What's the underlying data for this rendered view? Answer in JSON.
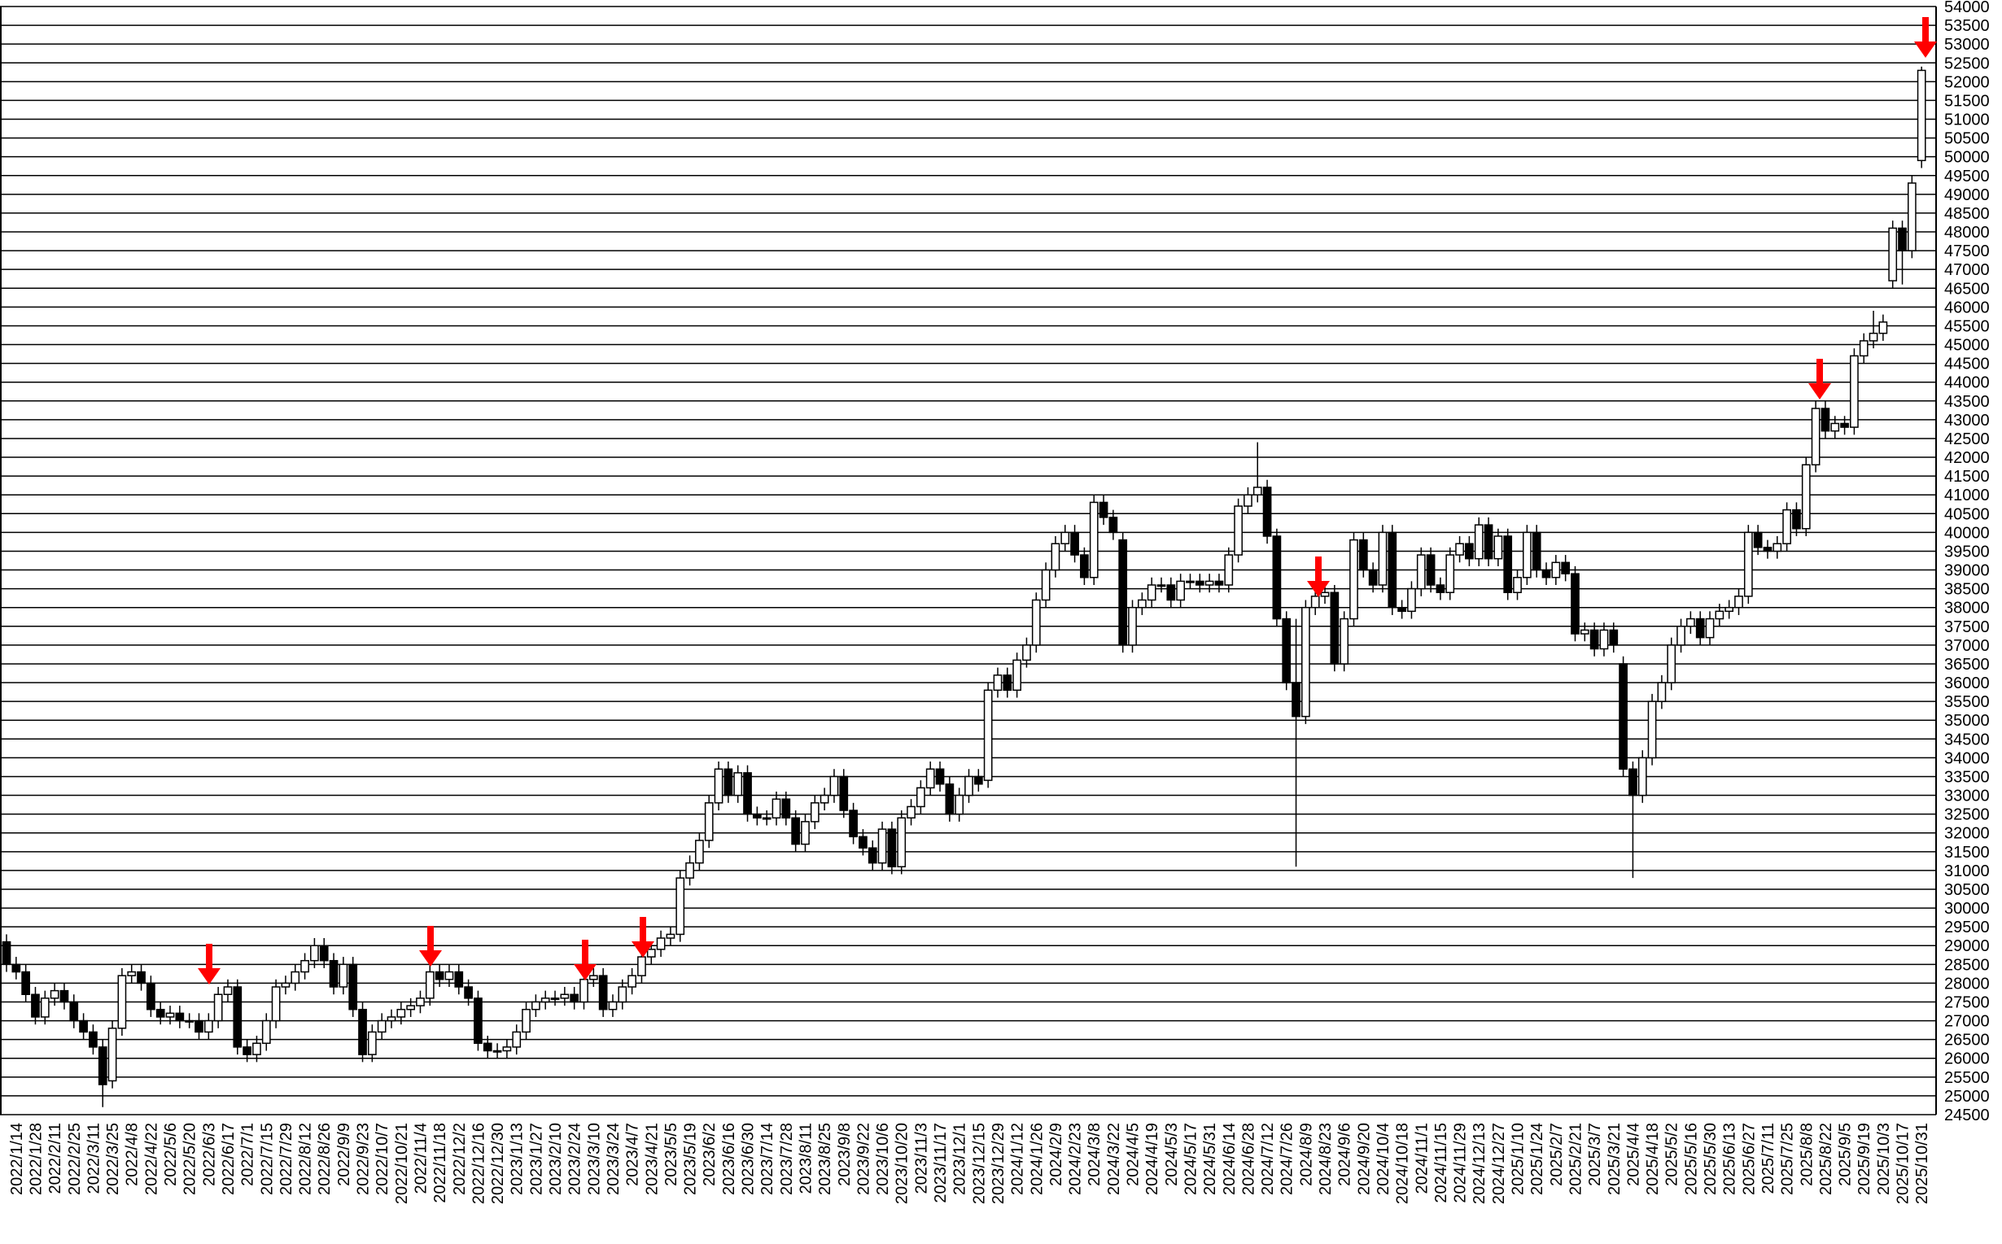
{
  "chart_data": {
    "type": "candlestick",
    "up_color": "#ffffff",
    "down_color": "#000000",
    "edge_color": "#000000",
    "grid": true,
    "ylim": [
      24500,
      54000
    ],
    "yticks": [
      24500,
      25000,
      25500,
      26000,
      26500,
      27000,
      27500,
      28000,
      28500,
      29000,
      29500,
      30000,
      30500,
      31000,
      31500,
      32000,
      32500,
      33000,
      33500,
      34000,
      34500,
      35000,
      35500,
      36000,
      36500,
      37000,
      37500,
      38000,
      38500,
      39000,
      39500,
      40000,
      40500,
      41000,
      41500,
      42000,
      42500,
      43000,
      43500,
      44000,
      44500,
      45000,
      45500,
      46000,
      46500,
      47000,
      47500,
      48000,
      48500,
      49000,
      49500,
      50000,
      50500,
      51000,
      51500,
      52000,
      52500,
      53000,
      53500,
      54000
    ],
    "categories": [
      null,
      "2022/1/14",
      null,
      "2022/1/28",
      null,
      "2022/2/11",
      null,
      "2022/2/25",
      null,
      "2022/3/11",
      null,
      "2022/3/25",
      null,
      "2022/4/8",
      null,
      "2022/4/22",
      null,
      "2022/5/6",
      null,
      "2022/5/20",
      null,
      "2022/6/3",
      null,
      "2022/6/17",
      null,
      "2022/7/1",
      null,
      "2022/7/15",
      null,
      "2022/7/29",
      null,
      "2022/8/12",
      null,
      "2022/8/26",
      null,
      "2022/9/9",
      null,
      "2022/9/23",
      null,
      "2022/10/7",
      null,
      "2022/10/21",
      null,
      "2022/11/4",
      null,
      "2022/11/18",
      null,
      "2022/12/2",
      null,
      "2022/12/16",
      null,
      "2022/12/30",
      null,
      "2023/1/13",
      null,
      "2023/1/27",
      null,
      "2023/2/10",
      null,
      "2023/2/24",
      null,
      "2023/3/10",
      null,
      "2023/3/24",
      null,
      "2023/4/7",
      null,
      "2023/4/21",
      null,
      "2023/5/5",
      null,
      "2023/5/19",
      null,
      "2023/6/2",
      null,
      "2023/6/16",
      null,
      "2023/6/30",
      null,
      "2023/7/14",
      null,
      "2023/7/28",
      null,
      "2023/8/11",
      null,
      "2023/8/25",
      null,
      "2023/9/8",
      null,
      "2023/9/22",
      null,
      "2023/10/6",
      null,
      "2023/10/20",
      null,
      "2023/11/3",
      null,
      "2023/11/17",
      null,
      "2023/12/1",
      null,
      "2023/12/15",
      null,
      "2023/12/29",
      null,
      "2024/1/12",
      null,
      "2024/1/26",
      null,
      "2024/2/9",
      null,
      "2024/2/23",
      null,
      "2024/3/8",
      null,
      "2024/3/22",
      null,
      "2024/4/5",
      null,
      "2024/4/19",
      null,
      "2024/5/3",
      null,
      "2024/5/17",
      null,
      "2024/5/31",
      null,
      "2024/6/14",
      null,
      "2024/6/28",
      null,
      "2024/7/12",
      null,
      "2024/7/26",
      null,
      "2024/8/9",
      null,
      "2024/8/23",
      null,
      "2024/9/6",
      null,
      "2024/9/20",
      null,
      "2024/10/4",
      null,
      "2024/10/18",
      null,
      "2024/11/1",
      null,
      "2024/11/15",
      null,
      "2024/11/29",
      null,
      "2024/12/13",
      null,
      "2024/12/27",
      null,
      "2025/1/10",
      null,
      "2025/1/24",
      null,
      "2025/2/7",
      null,
      "2025/2/21",
      null,
      "2025/3/7",
      null,
      "2025/3/21",
      null,
      "2025/4/4",
      null,
      "2025/4/18",
      null,
      "2025/5/2",
      null,
      "2025/5/16",
      null,
      "2025/5/30",
      null,
      "2025/6/13",
      null,
      "2025/6/27",
      null,
      "2025/7/11",
      null,
      "2025/7/25",
      null,
      "2025/8/8",
      null,
      "2025/8/22",
      null,
      "2025/9/5",
      null,
      "2025/9/19",
      null,
      "2025/10/3",
      null,
      "2025/10/17",
      null,
      "2025/10/31"
    ],
    "open": [
      29100,
      28500,
      28300,
      27700,
      27100,
      27600,
      27800,
      27500,
      27000,
      26700,
      26300,
      25400,
      26800,
      28200,
      28300,
      28000,
      27300,
      27100,
      27200,
      27000,
      27000,
      26700,
      27000,
      27700,
      27900,
      26300,
      26100,
      26400,
      27000,
      27900,
      28000,
      28300,
      28600,
      29000,
      28600,
      27900,
      28500,
      27300,
      26100,
      26700,
      27000,
      27100,
      27300,
      27400,
      27600,
      28300,
      28100,
      28300,
      27900,
      27600,
      26400,
      26200,
      26200,
      26300,
      26700,
      27300,
      27500,
      27600,
      27600,
      27700,
      27500,
      28100,
      28200,
      27300,
      27500,
      27900,
      28200,
      28700,
      28900,
      29200,
      29300,
      30800,
      31200,
      31800,
      32800,
      33700,
      33000,
      33600,
      32500,
      32400,
      32400,
      32900,
      32400,
      31700,
      32300,
      32800,
      33000,
      33500,
      32600,
      31900,
      31600,
      31200,
      32100,
      31100,
      32400,
      32700,
      33200,
      33700,
      33300,
      32500,
      33000,
      33500,
      33400,
      35800,
      36200,
      35800,
      36600,
      37000,
      38200,
      39000,
      39700,
      40000,
      39400,
      38800,
      40800,
      40400,
      39800,
      37000,
      38000,
      38200,
      38600,
      38600,
      38200,
      38700,
      38700,
      38600,
      38700,
      38600,
      39400,
      40700,
      41000,
      41200,
      39900,
      37700,
      36000,
      35100,
      38000,
      38300,
      38400,
      36500,
      37700,
      39800,
      39000,
      38600,
      40000,
      38000,
      37900,
      38500,
      39400,
      38600,
      38400,
      39400,
      39700,
      39300,
      40200,
      39300,
      39900,
      38400,
      38800,
      40000,
      39000,
      38800,
      39200,
      38900,
      37300,
      37400,
      36900,
      37400,
      36500,
      33700,
      33000,
      34000,
      35500,
      36000,
      37000,
      37500,
      37700,
      37200,
      37700,
      37900,
      38000,
      38300,
      40000,
      39600,
      39500,
      39700,
      40600,
      40100,
      41800,
      43300,
      42700,
      42900,
      42800,
      44700,
      45100,
      45300,
      46700,
      48100,
      47500,
      49900
    ],
    "high": [
      29300,
      28700,
      28500,
      27900,
      27800,
      28000,
      28000,
      27700,
      27200,
      26900,
      26500,
      27000,
      28400,
      28500,
      28500,
      28200,
      27500,
      27400,
      27400,
      27200,
      27200,
      27200,
      27900,
      28100,
      28100,
      26500,
      26600,
      27200,
      28100,
      28200,
      28500,
      28800,
      29200,
      29200,
      28800,
      28700,
      28700,
      27500,
      26900,
      27200,
      27300,
      27500,
      27600,
      27800,
      28500,
      28500,
      28500,
      28500,
      28100,
      27800,
      26600,
      26400,
      26500,
      26900,
      27500,
      27700,
      27800,
      27800,
      27900,
      27900,
      28300,
      28400,
      28400,
      27700,
      28100,
      28400,
      28900,
      29100,
      29400,
      29500,
      31000,
      31400,
      32000,
      33000,
      33900,
      33900,
      33800,
      33800,
      32700,
      32600,
      33100,
      33100,
      32600,
      32500,
      33000,
      33200,
      33700,
      33700,
      32800,
      32100,
      31800,
      32300,
      32300,
      32600,
      32900,
      33400,
      33900,
      33900,
      33500,
      33200,
      33700,
      33700,
      36000,
      36400,
      36400,
      36800,
      37200,
      38400,
      39200,
      39900,
      40200,
      40200,
      39600,
      41000,
      41000,
      40600,
      40000,
      38200,
      38400,
      38800,
      38800,
      38800,
      38900,
      38900,
      38900,
      38900,
      38900,
      39600,
      40900,
      41200,
      42400,
      41400,
      40100,
      37900,
      37700,
      38200,
      38500,
      38600,
      38600,
      37900,
      40000,
      40000,
      39200,
      40200,
      40200,
      38200,
      38700,
      39600,
      39600,
      38800,
      39600,
      39900,
      39900,
      40400,
      40400,
      40100,
      40100,
      39000,
      40200,
      40200,
      39200,
      39400,
      39400,
      39100,
      37600,
      37600,
      37600,
      37600,
      36700,
      33900,
      34200,
      35700,
      36200,
      37200,
      37700,
      37900,
      37900,
      37900,
      38100,
      38200,
      38500,
      40200,
      40200,
      39800,
      39900,
      40800,
      40800,
      42000,
      43500,
      43500,
      43100,
      43100,
      44900,
      45300,
      45900,
      45800,
      48300,
      48300,
      49500,
      52400
    ],
    "low": [
      28300,
      28100,
      27500,
      26900,
      26900,
      27400,
      27300,
      26800,
      26500,
      26100,
      24700,
      25200,
      26600,
      28000,
      27800,
      27100,
      26900,
      26900,
      26800,
      26800,
      26500,
      26500,
      26800,
      27500,
      26100,
      25900,
      25900,
      26200,
      26800,
      27700,
      27800,
      28100,
      28400,
      28400,
      27700,
      27700,
      27100,
      25900,
      25900,
      26500,
      26800,
      26900,
      27100,
      27200,
      27400,
      27900,
      27900,
      27700,
      27400,
      26200,
      26000,
      26000,
      26000,
      26100,
      26500,
      27100,
      27300,
      27400,
      27400,
      27300,
      27300,
      27900,
      27100,
      27100,
      27300,
      27700,
      28000,
      28500,
      28700,
      29000,
      29100,
      30600,
      31000,
      31600,
      32600,
      32800,
      32800,
      32300,
      32200,
      32200,
      32200,
      32200,
      31500,
      31500,
      32100,
      32600,
      32800,
      32400,
      31700,
      31400,
      31000,
      31000,
      30900,
      30900,
      32200,
      32500,
      33000,
      33100,
      32300,
      32300,
      32800,
      33100,
      33200,
      35600,
      35600,
      35600,
      36400,
      36800,
      38000,
      38800,
      39500,
      39200,
      38600,
      38600,
      40200,
      39800,
      36800,
      36800,
      37800,
      38000,
      38400,
      38000,
      38000,
      38500,
      38400,
      38400,
      38400,
      38400,
      39200,
      40500,
      40800,
      39700,
      37500,
      35800,
      31100,
      34900,
      37800,
      38100,
      36300,
      36300,
      37500,
      38800,
      38400,
      38400,
      37800,
      37700,
      37700,
      38300,
      38400,
      38200,
      38200,
      39200,
      39100,
      39100,
      39100,
      39100,
      38200,
      38200,
      38600,
      38800,
      38600,
      38600,
      38700,
      37100,
      37100,
      36700,
      36700,
      36800,
      33500,
      30800,
      32800,
      33800,
      35300,
      35800,
      36800,
      37300,
      37000,
      37000,
      37500,
      37700,
      37800,
      38100,
      39400,
      39300,
      39300,
      39500,
      39900,
      39900,
      41600,
      42500,
      42500,
      42600,
      42600,
      44500,
      44900,
      45100,
      46500,
      46600,
      47300,
      49700
    ],
    "close": [
      28500,
      28300,
      27700,
      27100,
      27600,
      27800,
      27500,
      27000,
      26700,
      26300,
      25300,
      26800,
      28200,
      28300,
      28000,
      27300,
      27100,
      27200,
      27000,
      27000,
      26700,
      27000,
      27700,
      27900,
      26300,
      26100,
      26400,
      27000,
      27900,
      28000,
      28300,
      28600,
      29000,
      28600,
      27900,
      28500,
      27300,
      26100,
      26700,
      27000,
      27100,
      27300,
      27400,
      27600,
      28300,
      28100,
      28300,
      27900,
      27600,
      26400,
      26200,
      26200,
      26300,
      26700,
      27300,
      27500,
      27600,
      27600,
      27700,
      27500,
      28100,
      28200,
      27300,
      27500,
      27900,
      28200,
      28700,
      28900,
      29200,
      29300,
      30800,
      31200,
      31800,
      32800,
      33700,
      33000,
      33600,
      32500,
      32400,
      32400,
      32900,
      32400,
      31700,
      32300,
      32800,
      33000,
      33500,
      32600,
      31900,
      31600,
      31200,
      32100,
      31100,
      32400,
      32700,
      33200,
      33700,
      33300,
      32500,
      33000,
      33500,
      33300,
      35800,
      36200,
      35800,
      36600,
      37000,
      38200,
      39000,
      39700,
      40000,
      39400,
      38800,
      40800,
      40400,
      40000,
      37000,
      38000,
      38200,
      38600,
      38600,
      38200,
      38700,
      38700,
      38600,
      38700,
      38600,
      39400,
      40700,
      41000,
      41200,
      39900,
      37700,
      36000,
      35100,
      38000,
      38300,
      38400,
      36500,
      37700,
      39800,
      39000,
      38600,
      40000,
      38000,
      37900,
      38500,
      39400,
      38600,
      38400,
      39400,
      39700,
      39300,
      40200,
      39300,
      39900,
      38400,
      38800,
      40000,
      39000,
      38800,
      39200,
      38900,
      37300,
      37400,
      36900,
      37400,
      37000,
      33700,
      33000,
      34000,
      35500,
      36000,
      37000,
      37500,
      37700,
      37200,
      37700,
      37900,
      38000,
      38300,
      40000,
      39600,
      39500,
      39700,
      40600,
      40100,
      41800,
      43300,
      42700,
      42900,
      42800,
      44700,
      45100,
      45300,
      45600,
      48100,
      47500,
      49300,
      52300
    ]
  }
}
